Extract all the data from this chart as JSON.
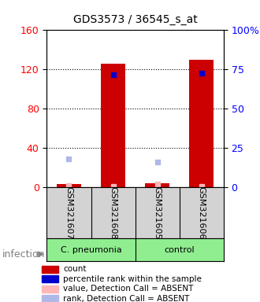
{
  "title": "GDS3573 / 36545_s_at",
  "samples": [
    "GSM321607",
    "GSM321608",
    "GSM321605",
    "GSM321606"
  ],
  "groups": [
    {
      "name": "C. pneumonia",
      "color": "#90EE90",
      "indices": [
        0,
        1
      ]
    },
    {
      "name": "control",
      "color": "#90EE90",
      "indices": [
        2,
        3
      ]
    }
  ],
  "group_label": "infection",
  "bar_color": "#cc0000",
  "percentile_color": "#0000cc",
  "absent_value_color": "#ffb6b6",
  "absent_rank_color": "#b0b8e8",
  "ylim_left": [
    0,
    160
  ],
  "ylim_right": [
    0,
    100
  ],
  "yticks_left": [
    0,
    40,
    80,
    120,
    160
  ],
  "yticks_right": [
    0,
    25,
    50,
    75,
    100
  ],
  "ytick_labels_right": [
    "0",
    "25",
    "50",
    "75",
    "100%"
  ],
  "count_values": [
    3,
    126,
    4,
    130
  ],
  "percentile_values": [
    null,
    115,
    null,
    116
  ],
  "absent_value_values": [
    2,
    1,
    3,
    1
  ],
  "absent_rank_values": [
    18,
    null,
    16,
    null
  ],
  "sample_bg_color": "#d3d3d3",
  "plot_bg_color": "#ffffff",
  "grid_color": "#000000"
}
